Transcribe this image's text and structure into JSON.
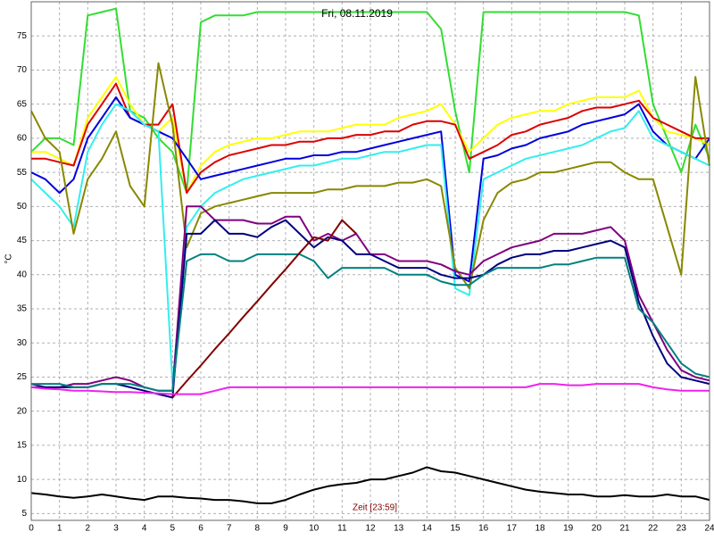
{
  "chart_data": {
    "type": "line",
    "title": "Fri, 08.11.2019",
    "xlabel": "Zeit [23:59]",
    "ylabel": "°C",
    "x": [
      0,
      0.5,
      1,
      1.5,
      2,
      2.5,
      3,
      3.5,
      4,
      4.5,
      5,
      5.5,
      6,
      6.5,
      7,
      7.5,
      8,
      8.5,
      9,
      9.5,
      10,
      10.5,
      11,
      11.5,
      12,
      12.5,
      13,
      13.5,
      14,
      14.5,
      15,
      15.5,
      16,
      16.5,
      17,
      17.5,
      18,
      18.5,
      19,
      19.5,
      20,
      20.5,
      21,
      21.5,
      22,
      22.5,
      23,
      23.5,
      24
    ],
    "xlim": [
      0,
      24
    ],
    "xticks": [
      0,
      1,
      2,
      3,
      4,
      5,
      6,
      7,
      8,
      9,
      10,
      11,
      12,
      13,
      14,
      15,
      16,
      17,
      18,
      19,
      20,
      21,
      22,
      23,
      24
    ],
    "ylim": [
      4,
      80
    ],
    "yticks": [
      5,
      10,
      15,
      20,
      25,
      30,
      35,
      40,
      45,
      50,
      55,
      60,
      65,
      70,
      75
    ],
    "grid": true,
    "series": [
      {
        "color": "#33dd33",
        "values": [
          58,
          60,
          60,
          59,
          78,
          78.5,
          79,
          64,
          63,
          60,
          58,
          52,
          77,
          78,
          78,
          78,
          78.5,
          78.5,
          78.5,
          78.5,
          78.5,
          78.5,
          78.5,
          78.5,
          78.5,
          78.5,
          78.5,
          78.5,
          78.5,
          76,
          64,
          55,
          78.5,
          78.5,
          78.5,
          78.5,
          78.5,
          78.5,
          78.5,
          78.5,
          78.5,
          78.5,
          78.5,
          78,
          65,
          60,
          55,
          62,
          57
        ]
      },
      {
        "color": "#ffff00",
        "values": [
          58,
          58,
          57,
          56,
          63,
          66,
          69,
          65,
          62,
          61,
          63,
          52,
          56,
          58,
          59,
          59.5,
          60,
          60,
          60.5,
          61,
          61,
          61,
          61.5,
          62,
          62,
          62,
          63,
          63.5,
          64,
          65,
          62,
          58,
          60,
          62,
          63,
          63.5,
          64,
          64,
          65,
          65.5,
          66,
          66,
          66,
          67,
          63,
          61,
          60.5,
          60,
          59
        ]
      },
      {
        "color": "#dd0000",
        "values": [
          57,
          57,
          56.5,
          56,
          62,
          65,
          68,
          63,
          62,
          62,
          65,
          52,
          55,
          56.5,
          57.5,
          58,
          58.5,
          59,
          59,
          59.5,
          59.5,
          60,
          60,
          60.5,
          60.5,
          61,
          61,
          62,
          62.5,
          62.5,
          62,
          57,
          58,
          59,
          60.5,
          61,
          62,
          62.5,
          63,
          64,
          64.5,
          64.5,
          65,
          65.5,
          63,
          62,
          61,
          60,
          60
        ]
      },
      {
        "color": "#0000dd",
        "values": [
          55,
          54,
          52,
          54,
          60,
          63,
          66,
          63,
          62,
          61,
          60,
          57,
          54,
          54.5,
          55,
          55.5,
          56,
          56.5,
          57,
          57,
          57.5,
          57.5,
          58,
          58,
          58.5,
          59,
          59.5,
          60,
          60.5,
          61,
          40,
          39,
          57,
          57.5,
          58.5,
          59,
          60,
          60.5,
          61,
          62,
          62.5,
          63,
          63.5,
          65,
          61,
          59,
          58,
          57,
          60
        ]
      },
      {
        "color": "#33eeee",
        "values": [
          54,
          52,
          50,
          47,
          58,
          62,
          65,
          64,
          62,
          61,
          24,
          47,
          50,
          52,
          53,
          54,
          54.5,
          55,
          55.5,
          56,
          56,
          56.5,
          57,
          57,
          57.5,
          58,
          58,
          58.5,
          59,
          59,
          38,
          37,
          54,
          55,
          56,
          57,
          57.5,
          58,
          58.5,
          59,
          60,
          61,
          61.5,
          64,
          60,
          59,
          58,
          57,
          56
        ]
      },
      {
        "color": "#888800",
        "values": [
          64,
          60,
          58,
          46,
          54,
          57,
          61,
          53,
          50,
          71,
          62,
          44,
          49,
          50,
          50.5,
          51,
          51.5,
          52,
          52,
          52,
          52,
          52.5,
          52.5,
          53,
          53,
          53,
          53.5,
          53.5,
          54,
          53,
          41,
          38,
          48,
          52,
          53.5,
          54,
          55,
          55,
          55.5,
          56,
          56.5,
          56.5,
          55,
          54,
          54,
          47,
          40,
          69,
          56
        ]
      },
      {
        "color": "#800080",
        "values": [
          24,
          23.5,
          23.5,
          24,
          24,
          24.5,
          25,
          24.5,
          23.5,
          23,
          23,
          50,
          50,
          48,
          48,
          48,
          47.5,
          47.5,
          48.5,
          48.5,
          45,
          46,
          45,
          46,
          43,
          43,
          42,
          42,
          42,
          41.5,
          40.5,
          40,
          42,
          43,
          44,
          44.5,
          45,
          46,
          46,
          46,
          46.5,
          47,
          45,
          37,
          33,
          29,
          26,
          25,
          24.5
        ]
      },
      {
        "color": "#000080",
        "values": [
          23.5,
          23.5,
          23.5,
          23.5,
          23.5,
          24,
          24,
          23.5,
          23,
          22.5,
          22,
          46,
          46,
          48,
          46,
          46,
          45.5,
          47,
          48,
          46,
          44,
          45.5,
          45,
          43,
          43,
          42,
          41,
          41,
          41,
          40,
          39.5,
          39.5,
          40,
          41.5,
          42.5,
          43,
          43,
          43.5,
          43.5,
          44,
          44.5,
          45,
          44,
          36,
          31,
          27,
          25,
          24.5,
          24
        ]
      },
      {
        "color": "#008080",
        "values": [
          24,
          24,
          24,
          23.5,
          23.5,
          24,
          24,
          24,
          23.5,
          23,
          23,
          42,
          43,
          43,
          42,
          42,
          43,
          43,
          43,
          43,
          42,
          39.5,
          41,
          41,
          41,
          41,
          40,
          40,
          40,
          39,
          38.5,
          38.5,
          40,
          41,
          41,
          41,
          41,
          41.5,
          41.5,
          42,
          42.5,
          42.5,
          42.5,
          35,
          33,
          30,
          27,
          25.5,
          25
        ]
      },
      {
        "color": "#800000",
        "values": [
          null,
          null,
          null,
          null,
          null,
          null,
          null,
          null,
          null,
          null,
          22,
          24.4,
          26.7,
          29.1,
          31.4,
          33.8,
          36.1,
          38.5,
          40.8,
          43.2,
          45.5,
          45,
          48,
          46,
          null,
          null,
          null,
          null,
          null,
          null,
          null,
          null,
          null,
          null,
          null,
          null,
          null,
          null,
          null,
          null,
          null,
          null,
          null,
          null,
          null,
          null,
          null,
          null,
          null
        ]
      },
      {
        "color": "#ee22ee",
        "values": [
          23.5,
          23.3,
          23.2,
          23,
          23,
          22.9,
          22.8,
          22.8,
          22.7,
          22.6,
          22.5,
          22.5,
          22.5,
          23,
          23.5,
          23.5,
          23.5,
          23.5,
          23.5,
          23.5,
          23.5,
          23.5,
          23.5,
          23.5,
          23.5,
          23.5,
          23.5,
          23.5,
          23.5,
          23.5,
          23.5,
          23.5,
          23.5,
          23.5,
          23.5,
          23.5,
          24,
          24,
          23.8,
          23.8,
          24,
          24,
          24,
          24,
          23.5,
          23.2,
          23,
          23,
          23
        ]
      },
      {
        "color": "#000000",
        "values": [
          8,
          7.8,
          7.5,
          7.3,
          7.5,
          7.8,
          7.5,
          7.2,
          7,
          7.5,
          7.5,
          7.3,
          7.2,
          7,
          7,
          6.8,
          6.5,
          6.5,
          7,
          7.8,
          8.5,
          9,
          9.3,
          9.5,
          10,
          10,
          10.5,
          11,
          11.8,
          11.2,
          11,
          10.5,
          10,
          9.5,
          9,
          8.5,
          8.2,
          8,
          7.8,
          7.8,
          7.5,
          7.5,
          7.7,
          7.5,
          7.5,
          7.8,
          7.5,
          7.5,
          7
        ]
      }
    ]
  }
}
